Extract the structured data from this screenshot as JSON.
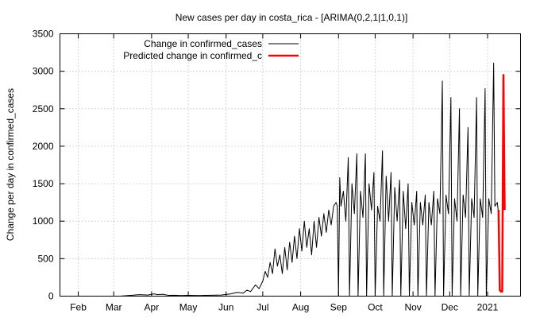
{
  "chart_data": {
    "type": "line",
    "title": "New cases per day in costa_rica -  [ARIMA(0,2,1|1,0,1)]",
    "xlabel": "",
    "ylabel": "Change per day in confirmed_cases",
    "ylim": [
      0,
      3500
    ],
    "yticks": [
      0,
      500,
      1000,
      1500,
      2000,
      2500,
      3000,
      3500
    ],
    "xlim": [
      "2020-01-17",
      "2021-01-28"
    ],
    "xticks": [
      {
        "date": "2020-02-01",
        "label": "Feb"
      },
      {
        "date": "2020-03-01",
        "label": "Mar"
      },
      {
        "date": "2020-04-01",
        "label": "Apr"
      },
      {
        "date": "2020-05-01",
        "label": "May"
      },
      {
        "date": "2020-06-01",
        "label": "Jun"
      },
      {
        "date": "2020-07-01",
        "label": "Jul"
      },
      {
        "date": "2020-08-01",
        "label": "Aug"
      },
      {
        "date": "2020-09-01",
        "label": "Sep"
      },
      {
        "date": "2020-10-01",
        "label": "Oct"
      },
      {
        "date": "2020-11-01",
        "label": "Nov"
      },
      {
        "date": "2020-12-01",
        "label": "Dec"
      },
      {
        "date": "2021-01-01",
        "label": "2021"
      }
    ],
    "grid": true,
    "legend_position": "top-left",
    "series": [
      {
        "name": "Change in confirmed_cases",
        "color": "#000000",
        "points": [
          [
            "2020-03-06",
            0
          ],
          [
            "2020-03-15",
            10
          ],
          [
            "2020-03-22",
            20
          ],
          [
            "2020-03-29",
            15
          ],
          [
            "2020-04-03",
            30
          ],
          [
            "2020-04-06",
            20
          ],
          [
            "2020-04-10",
            25
          ],
          [
            "2020-04-15",
            10
          ],
          [
            "2020-04-20",
            12
          ],
          [
            "2020-04-25",
            8
          ],
          [
            "2020-05-01",
            10
          ],
          [
            "2020-05-10",
            8
          ],
          [
            "2020-05-20",
            12
          ],
          [
            "2020-05-28",
            15
          ],
          [
            "2020-06-05",
            30
          ],
          [
            "2020-06-10",
            50
          ],
          [
            "2020-06-15",
            40
          ],
          [
            "2020-06-18",
            80
          ],
          [
            "2020-06-21",
            60
          ],
          [
            "2020-06-25",
            150
          ],
          [
            "2020-06-28",
            100
          ],
          [
            "2020-07-01",
            200
          ],
          [
            "2020-07-03",
            330
          ],
          [
            "2020-07-05",
            250
          ],
          [
            "2020-07-07",
            450
          ],
          [
            "2020-07-09",
            300
          ],
          [
            "2020-07-11",
            630
          ],
          [
            "2020-07-13",
            400
          ],
          [
            "2020-07-15",
            550
          ],
          [
            "2020-07-17",
            300
          ],
          [
            "2020-07-19",
            650
          ],
          [
            "2020-07-21",
            350
          ],
          [
            "2020-07-23",
            720
          ],
          [
            "2020-07-25",
            450
          ],
          [
            "2020-07-27",
            800
          ],
          [
            "2020-07-29",
            500
          ],
          [
            "2020-07-31",
            900
          ],
          [
            "2020-08-02",
            600
          ],
          [
            "2020-08-04",
            1000
          ],
          [
            "2020-08-06",
            650
          ],
          [
            "2020-08-08",
            900
          ],
          [
            "2020-08-10",
            550
          ],
          [
            "2020-08-12",
            1000
          ],
          [
            "2020-08-14",
            650
          ],
          [
            "2020-08-16",
            1050
          ],
          [
            "2020-08-18",
            800
          ],
          [
            "2020-08-20",
            1100
          ],
          [
            "2020-08-22",
            850
          ],
          [
            "2020-08-24",
            1150
          ],
          [
            "2020-08-26",
            950
          ],
          [
            "2020-08-28",
            1200
          ],
          [
            "2020-08-30",
            1250
          ],
          [
            "2020-08-31",
            1200
          ],
          [
            "2020-09-01",
            0
          ],
          [
            "2020-09-02",
            1580
          ],
          [
            "2020-09-03",
            1200
          ],
          [
            "2020-09-05",
            1400
          ],
          [
            "2020-09-07",
            1000
          ],
          [
            "2020-09-09",
            1850
          ],
          [
            "2020-09-10",
            0
          ],
          [
            "2020-09-12",
            1500
          ],
          [
            "2020-09-14",
            1100
          ],
          [
            "2020-09-16",
            1900
          ],
          [
            "2020-09-17",
            0
          ],
          [
            "2020-09-19",
            1400
          ],
          [
            "2020-09-21",
            1050
          ],
          [
            "2020-09-23",
            1900
          ],
          [
            "2020-09-24",
            0
          ],
          [
            "2020-09-26",
            1500
          ],
          [
            "2020-09-28",
            1150
          ],
          [
            "2020-09-30",
            1650
          ],
          [
            "2020-10-01",
            0
          ],
          [
            "2020-10-03",
            1200
          ],
          [
            "2020-10-05",
            1000
          ],
          [
            "2020-10-07",
            1940
          ],
          [
            "2020-10-08",
            0
          ],
          [
            "2020-10-10",
            1600
          ],
          [
            "2020-10-12",
            1000
          ],
          [
            "2020-10-14",
            1650
          ],
          [
            "2020-10-15",
            0
          ],
          [
            "2020-10-17",
            1450
          ],
          [
            "2020-10-19",
            1000
          ],
          [
            "2020-10-21",
            1550
          ],
          [
            "2020-10-22",
            0
          ],
          [
            "2020-10-24",
            1400
          ],
          [
            "2020-10-26",
            900
          ],
          [
            "2020-10-28",
            1500
          ],
          [
            "2020-10-29",
            0
          ],
          [
            "2020-10-31",
            1250
          ],
          [
            "2020-11-02",
            950
          ],
          [
            "2020-11-04",
            1400
          ],
          [
            "2020-11-05",
            0
          ],
          [
            "2020-11-07",
            1250
          ],
          [
            "2020-11-09",
            950
          ],
          [
            "2020-11-11",
            1350
          ],
          [
            "2020-11-12",
            0
          ],
          [
            "2020-11-14",
            1250
          ],
          [
            "2020-11-16",
            950
          ],
          [
            "2020-11-18",
            1400
          ],
          [
            "2020-11-19",
            0
          ],
          [
            "2020-11-21",
            1300
          ],
          [
            "2020-11-23",
            1100
          ],
          [
            "2020-11-25",
            2870
          ],
          [
            "2020-11-26",
            0
          ],
          [
            "2020-11-28",
            1350
          ],
          [
            "2020-11-30",
            1100
          ],
          [
            "2020-12-02",
            2650
          ],
          [
            "2020-12-03",
            0
          ],
          [
            "2020-12-05",
            1300
          ],
          [
            "2020-12-07",
            1000
          ],
          [
            "2020-12-09",
            2500
          ],
          [
            "2020-12-10",
            0
          ],
          [
            "2020-12-12",
            1350
          ],
          [
            "2020-12-14",
            1050
          ],
          [
            "2020-12-16",
            2250
          ],
          [
            "2020-12-17",
            0
          ],
          [
            "2020-12-19",
            1300
          ],
          [
            "2020-12-21",
            1050
          ],
          [
            "2020-12-23",
            2650
          ],
          [
            "2020-12-24",
            0
          ],
          [
            "2020-12-26",
            1300
          ],
          [
            "2020-12-28",
            1050
          ],
          [
            "2020-12-30",
            2770
          ],
          [
            "2020-12-31",
            0
          ],
          [
            "2021-01-02",
            1300
          ],
          [
            "2021-01-04",
            1100
          ],
          [
            "2021-01-06",
            3110
          ],
          [
            "2021-01-07",
            1200
          ],
          [
            "2021-01-09",
            1250
          ],
          [
            "2021-01-10",
            1100
          ]
        ]
      },
      {
        "name": "Predicted change in confirmed_c",
        "color": "#ff0000",
        "points": [
          [
            "2021-01-10",
            1150
          ],
          [
            "2021-01-11",
            80
          ],
          [
            "2021-01-12",
            60
          ],
          [
            "2021-01-13",
            60
          ],
          [
            "2021-01-14",
            2950
          ],
          [
            "2021-01-15",
            1150
          ]
        ]
      }
    ]
  }
}
